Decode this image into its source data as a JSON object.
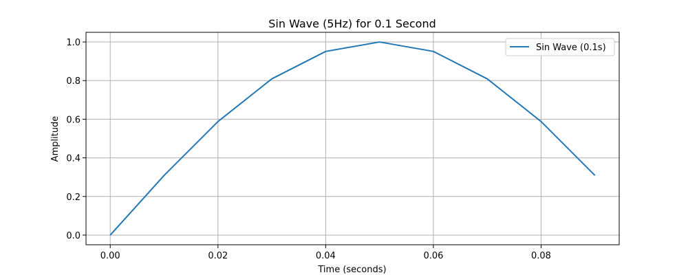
{
  "chart_data": {
    "type": "line",
    "title": "Sin Wave (5Hz) for 0.1 Second",
    "xlabel": "Time (seconds)",
    "ylabel": "Amplitude",
    "xlim": [
      -0.0045,
      0.0945
    ],
    "ylim": [
      -0.05,
      1.05
    ],
    "x_ticks": [
      0.0,
      0.02,
      0.04,
      0.06,
      0.08
    ],
    "x_tick_labels": [
      "0.00",
      "0.02",
      "0.04",
      "0.06",
      "0.08"
    ],
    "y_ticks": [
      0.0,
      0.2,
      0.4,
      0.6,
      0.8,
      1.0
    ],
    "y_tick_labels": [
      "0.0",
      "0.2",
      "0.4",
      "0.6",
      "0.8",
      "1.0"
    ],
    "grid": true,
    "legend_position": "top-right",
    "series": [
      {
        "name": "Sin Wave (0.1s)",
        "color": "#1f77b4",
        "x": [
          0.0,
          0.01,
          0.02,
          0.03,
          0.04,
          0.05,
          0.06,
          0.07,
          0.08,
          0.09
        ],
        "y": [
          0.0,
          0.309,
          0.588,
          0.809,
          0.951,
          1.0,
          0.951,
          0.809,
          0.588,
          0.309
        ]
      }
    ]
  }
}
